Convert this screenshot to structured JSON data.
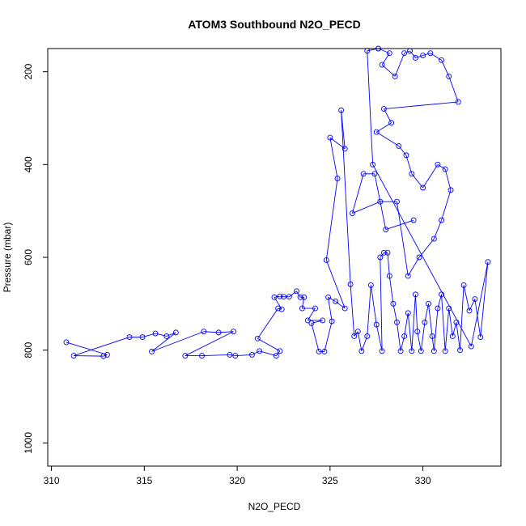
{
  "chart_data": {
    "type": "scatter",
    "title": "ATOM3 Southbound N2O_PECD",
    "xlabel": "N2O_PECD",
    "ylabel": "Pressure (mbar)",
    "xlim": [
      309.8,
      334.2
    ],
    "ylim": [
      1050,
      150
    ],
    "y_reversed": true,
    "grid": false,
    "legend": "none",
    "x_ticks": [
      310,
      315,
      320,
      325,
      330
    ],
    "y_ticks": [
      200,
      400,
      600,
      800,
      1000
    ],
    "series_color": "#0000ff",
    "marker": "open-circle",
    "connected": true,
    "points": [
      [
        310.8,
        783
      ],
      [
        313.0,
        810
      ],
      [
        312.8,
        813
      ],
      [
        311.2,
        812
      ],
      [
        314.2,
        772
      ],
      [
        314.9,
        772
      ],
      [
        315.6,
        764
      ],
      [
        316.2,
        770
      ],
      [
        316.7,
        762
      ],
      [
        315.4,
        803
      ],
      [
        318.2,
        760
      ],
      [
        319.0,
        762
      ],
      [
        319.8,
        760
      ],
      [
        317.2,
        812
      ],
      [
        318.1,
        812
      ],
      [
        319.6,
        810
      ],
      [
        319.9,
        812
      ],
      [
        320.8,
        810
      ],
      [
        321.2,
        802
      ],
      [
        322.1,
        812
      ],
      [
        322.3,
        802
      ],
      [
        321.1,
        775
      ],
      [
        322.2,
        710
      ],
      [
        322.4,
        712
      ],
      [
        322.0,
        686
      ],
      [
        322.3,
        684
      ],
      [
        322.5,
        685
      ],
      [
        322.8,
        685
      ],
      [
        323.2,
        673
      ],
      [
        323.4,
        686
      ],
      [
        323.6,
        686
      ],
      [
        323.5,
        710
      ],
      [
        324.2,
        710
      ],
      [
        323.8,
        736
      ],
      [
        324.6,
        736
      ],
      [
        324.0,
        742
      ],
      [
        324.4,
        803
      ],
      [
        324.7,
        803
      ],
      [
        325.1,
        738
      ],
      [
        324.9,
        686
      ],
      [
        325.3,
        695
      ],
      [
        325.8,
        710
      ],
      [
        324.8,
        606
      ],
      [
        325.4,
        430
      ],
      [
        325.0,
        342
      ],
      [
        325.8,
        366
      ],
      [
        325.6,
        283
      ],
      [
        326.1,
        658
      ],
      [
        326.3,
        770
      ],
      [
        326.5,
        760
      ],
      [
        326.7,
        802
      ],
      [
        327.0,
        770
      ],
      [
        327.2,
        660
      ],
      [
        327.5,
        745
      ],
      [
        327.8,
        802
      ],
      [
        327.7,
        600
      ],
      [
        327.9,
        590
      ],
      [
        328.1,
        590
      ],
      [
        328.2,
        640
      ],
      [
        328.4,
        700
      ],
      [
        328.6,
        740
      ],
      [
        328.8,
        802
      ],
      [
        329.0,
        770
      ],
      [
        329.2,
        720
      ],
      [
        329.4,
        802
      ],
      [
        329.6,
        680
      ],
      [
        329.7,
        760
      ],
      [
        329.9,
        802
      ],
      [
        330.1,
        740
      ],
      [
        330.3,
        700
      ],
      [
        330.5,
        770
      ],
      [
        330.6,
        802
      ],
      [
        330.8,
        710
      ],
      [
        331.0,
        680
      ],
      [
        331.2,
        802
      ],
      [
        331.4,
        710
      ],
      [
        331.6,
        770
      ],
      [
        331.8,
        740
      ],
      [
        332.0,
        800
      ],
      [
        332.2,
        660
      ],
      [
        332.5,
        715
      ],
      [
        332.8,
        690
      ],
      [
        333.1,
        772
      ],
      [
        333.5,
        610
      ],
      [
        332.6,
        792
      ],
      [
        327.3,
        400
      ],
      [
        327.0,
        155
      ],
      [
        327.6,
        150
      ],
      [
        328.2,
        160
      ],
      [
        327.8,
        185
      ],
      [
        328.5,
        210
      ],
      [
        329.0,
        160
      ],
      [
        329.3,
        155
      ],
      [
        329.6,
        170
      ],
      [
        330.0,
        165
      ],
      [
        330.4,
        160
      ],
      [
        331.0,
        175
      ],
      [
        331.4,
        210
      ],
      [
        331.9,
        265
      ],
      [
        327.9,
        280
      ],
      [
        328.3,
        310
      ],
      [
        327.5,
        330
      ],
      [
        328.7,
        360
      ],
      [
        329.1,
        380
      ],
      [
        329.4,
        420
      ],
      [
        330.0,
        450
      ],
      [
        330.8,
        400
      ],
      [
        331.2,
        410
      ],
      [
        331.5,
        455
      ],
      [
        331.0,
        520
      ],
      [
        330.6,
        560
      ],
      [
        329.8,
        600
      ],
      [
        329.2,
        640
      ],
      [
        328.6,
        480
      ],
      [
        327.7,
        480
      ],
      [
        326.2,
        505
      ],
      [
        326.8,
        420
      ],
      [
        327.4,
        420
      ],
      [
        328.0,
        540
      ],
      [
        329.5,
        520
      ]
    ]
  }
}
